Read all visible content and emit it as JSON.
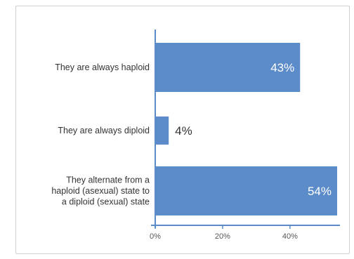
{
  "chart_data": {
    "type": "bar",
    "orientation": "horizontal",
    "categories": [
      [
        "They are always haploid"
      ],
      [
        "They are always diploid"
      ],
      [
        "They alternate from a",
        "haploid (asexual) state to",
        "a diploid (sexual) state"
      ]
    ],
    "values": [
      43,
      4,
      54
    ],
    "value_labels": [
      "43%",
      "4%",
      "54%"
    ],
    "xlim": [
      0,
      54
    ],
    "xticks": [
      0,
      20,
      40
    ],
    "xtick_labels": [
      "0%",
      "20%",
      "40%"
    ],
    "grid": false,
    "colors": {
      "bar": "#5b8bc9",
      "axis": "#5b8bc9",
      "label_inside": "#ffffff",
      "label_outside": "#333333",
      "text": "#333333"
    }
  }
}
